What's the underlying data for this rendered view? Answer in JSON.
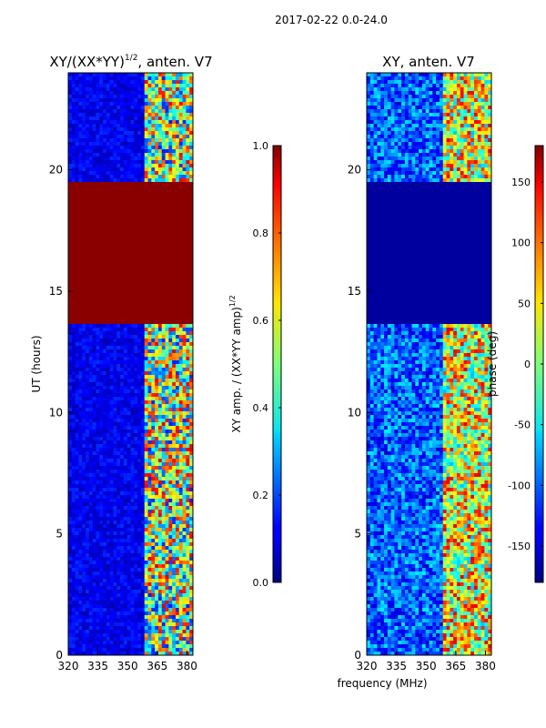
{
  "figure_title": "2017-02-22 0.0-24.0",
  "chart_data": [
    {
      "type": "heatmap",
      "title_text": "XY/(XX*YY)",
      "title_power": "1/2",
      "title_suffix": ", anten. V7",
      "xlabel": "",
      "ylabel": "UT (hours)",
      "xlim": [
        320,
        383
      ],
      "ylim": [
        0,
        24
      ],
      "xticks": [
        "320",
        "335",
        "350",
        "365",
        "380"
      ],
      "yticks": [
        "0",
        "5",
        "10",
        "15",
        "20"
      ],
      "colorbar": {
        "label_text": "XY amp. / (XX*YY amp)",
        "label_power": "1/2",
        "range": [
          0.0,
          1.0
        ],
        "ticks": [
          "0.0",
          "0.2",
          "0.4",
          "0.6",
          "0.8",
          "1.0"
        ]
      }
    },
    {
      "type": "heatmap",
      "title_text": "XY, anten. V7",
      "xlabel": "frequency (MHz)",
      "ylabel": "",
      "xlim": [
        320,
        383
      ],
      "ylim": [
        0,
        24
      ],
      "xticks": [
        "320",
        "335",
        "350",
        "365",
        "380"
      ],
      "yticks": [
        "0",
        "5",
        "10",
        "15",
        "20"
      ],
      "colorbar": {
        "label_text": "phase (deg)",
        "range": [
          -180,
          180
        ],
        "ticks": [
          "-150",
          "-100",
          "-50",
          "0",
          "50",
          "100",
          "150"
        ]
      }
    }
  ]
}
